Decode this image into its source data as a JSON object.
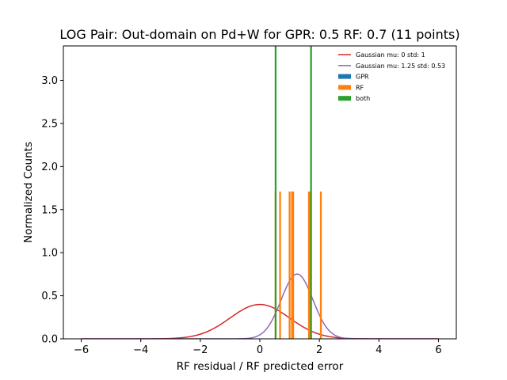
{
  "chart_data": {
    "type": "histogram",
    "title": "LOG Pair: Out-domain on Pd+W for GPR: 0.5 RF: 0.7 (11 points)",
    "xlabel": "RF residual / RF predicted error",
    "ylabel": "Normalized Counts",
    "xlim": [
      -6.6,
      6.6
    ],
    "ylim": [
      0,
      3.4
    ],
    "xticks": [
      -6,
      -4,
      -2,
      0,
      2,
      4,
      6
    ],
    "xtick_labels": [
      "−6",
      "−4",
      "−2",
      "0",
      "2",
      "4",
      "6"
    ],
    "yticks": [
      0.0,
      0.5,
      1.0,
      1.5,
      2.0,
      2.5,
      3.0
    ],
    "ytick_labels": [
      "0.0",
      "0.5",
      "1.0",
      "1.5",
      "2.0",
      "2.5",
      "3.0"
    ],
    "grid": false,
    "legend_position": "top-right",
    "bar_width": 0.06,
    "series": [
      {
        "name": "Gaussian mu: 0 std: 1",
        "kind": "curve",
        "color": "#d62728",
        "mu": 0,
        "std": 1
      },
      {
        "name": "Gaussian mu: 1.25 std: 0.53",
        "kind": "curve",
        "color": "#9467bd",
        "mu": 1.25,
        "std": 0.53
      },
      {
        "name": "GPR",
        "kind": "bar",
        "color": "#1f77b4",
        "x": [],
        "values": []
      },
      {
        "name": "RF",
        "kind": "bar",
        "color": "#ff7f0e",
        "x": [
          0.53,
          0.68,
          1.0,
          1.08,
          1.12,
          1.65,
          1.7,
          2.05
        ],
        "values": [
          1.71,
          1.71,
          1.71,
          1.71,
          1.71,
          1.71,
          1.71,
          1.71
        ]
      },
      {
        "name": "both",
        "kind": "bar",
        "color": "#2ca02c",
        "x": [
          0.53,
          1.72
        ],
        "values": [
          3.42,
          3.42
        ]
      }
    ]
  }
}
